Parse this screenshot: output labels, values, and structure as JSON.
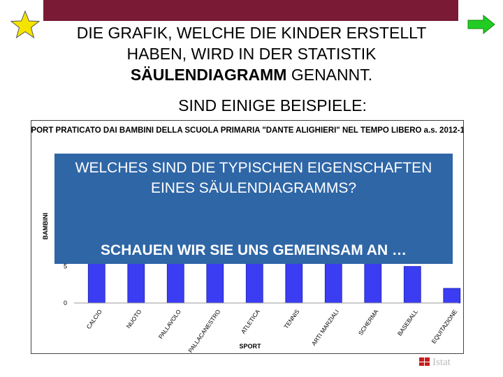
{
  "slide": {
    "line1": "DIE GRAFIK, WELCHE DIE KINDER ERSTELLT",
    "line2": "HABEN, WIRD IN DER STATISTIK",
    "line3_bold": "SÄULENDIAGRAMM",
    "line3_rest": " GENANNT.",
    "line4": "SIND EINIGE BEISPIELE:",
    "overlay_question": "WELCHES SIND DIE TYPISCHEN EIGENSCHAFTEN EINES SÄULENDIAGRAMMS?",
    "overlay_lead": "SCHAUEN WIR SIE UNS GEMEINSAM AN …",
    "logo_text": "Istat"
  },
  "colors": {
    "topbar": "#7a1a35",
    "star": "#f5e400",
    "arrow": "#22cc22",
    "bar": "#3a3df2",
    "overlay": "#2f66a6"
  },
  "chart_data": {
    "type": "bar",
    "title": "SPORT PRATICATO DAI BAMBINI DELLA SCUOLA PRIMARIA \"DANTE ALIGHIERI\" NEL TEMPO LIBERO a.s. 2012-13",
    "xlabel": "SPORT",
    "ylabel": "BAMBINI",
    "categories": [
      "CALCIO",
      "NUOTO",
      "PALLAVOLO",
      "PALLACANESTRO",
      "ATLETICA",
      "TENNIS",
      "ARTI MARZIALI",
      "SCHERMA",
      "BASEBALL",
      "EQUITAZIONE"
    ],
    "values": [
      20,
      20,
      20,
      20,
      16,
      15,
      14,
      12,
      5,
      2
    ],
    "yticks": [
      "0",
      "5"
    ],
    "ylim": [
      0,
      21
    ]
  }
}
